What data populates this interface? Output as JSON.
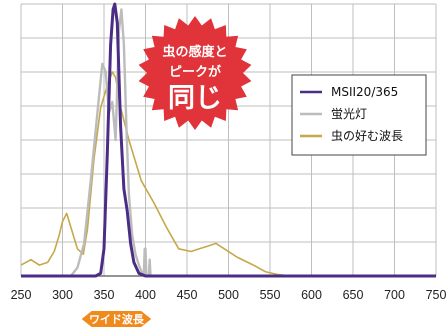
{
  "chart_data": {
    "type": "line",
    "xlim": [
      250,
      750
    ],
    "ylim": [
      0,
      1
    ],
    "grid": true,
    "legend_position": "top-right",
    "x_ticks": [
      "250",
      "300",
      "350",
      "400",
      "450",
      "500",
      "550",
      "600",
      "650",
      "700",
      "750"
    ],
    "series": [
      {
        "name": "MSII20/365",
        "color": "#4b2d86",
        "points": [
          [
            250,
            0
          ],
          [
            340,
            0
          ],
          [
            346,
            0.01
          ],
          [
            350,
            0.1
          ],
          [
            354,
            0.45
          ],
          [
            358,
            0.85
          ],
          [
            361,
            0.98
          ],
          [
            363,
            1.0
          ],
          [
            366,
            0.93
          ],
          [
            370,
            0.55
          ],
          [
            374,
            0.32
          ],
          [
            378,
            0.24
          ],
          [
            382,
            0.12
          ],
          [
            386,
            0.05
          ],
          [
            392,
            0.01
          ],
          [
            400,
            0
          ],
          [
            750,
            0
          ]
        ]
      },
      {
        "name": "蛍光灯",
        "color": "#bcbcbc",
        "points": [
          [
            250,
            0
          ],
          [
            300,
            0
          ],
          [
            310,
            0
          ],
          [
            318,
            0.03
          ],
          [
            326,
            0.12
          ],
          [
            334,
            0.35
          ],
          [
            342,
            0.6
          ],
          [
            348,
            0.78
          ],
          [
            352,
            0.75
          ],
          [
            356,
            0.6
          ],
          [
            360,
            0.64
          ],
          [
            364,
            0.5
          ],
          [
            368,
            0.9
          ],
          [
            371,
            0.98
          ],
          [
            374,
            0.85
          ],
          [
            377,
            0.55
          ],
          [
            380,
            0.3
          ],
          [
            384,
            0.15
          ],
          [
            388,
            0.08
          ],
          [
            392,
            0.04
          ],
          [
            396,
            0.01
          ],
          [
            398,
            0
          ],
          [
            399,
            0.1
          ],
          [
            400,
            0.1
          ],
          [
            401,
            0
          ],
          [
            404,
            0
          ],
          [
            405,
            0.06
          ],
          [
            406,
            0
          ],
          [
            750,
            0
          ]
        ]
      },
      {
        "name": "虫の好む波長",
        "color": "#c6a84a",
        "points": [
          [
            250,
            0.04
          ],
          [
            262,
            0.06
          ],
          [
            272,
            0.04
          ],
          [
            282,
            0.05
          ],
          [
            290,
            0.09
          ],
          [
            296,
            0.15
          ],
          [
            300,
            0.2
          ],
          [
            305,
            0.23
          ],
          [
            310,
            0.18
          ],
          [
            318,
            0.1
          ],
          [
            325,
            0.08
          ],
          [
            330,
            0.17
          ],
          [
            338,
            0.43
          ],
          [
            346,
            0.62
          ],
          [
            354,
            0.7
          ],
          [
            360,
            0.75
          ],
          [
            364,
            0.73
          ],
          [
            370,
            0.62
          ],
          [
            380,
            0.5
          ],
          [
            395,
            0.35
          ],
          [
            410,
            0.27
          ],
          [
            425,
            0.18
          ],
          [
            440,
            0.1
          ],
          [
            455,
            0.09
          ],
          [
            465,
            0.1
          ],
          [
            475,
            0.11
          ],
          [
            485,
            0.12
          ],
          [
            495,
            0.1
          ],
          [
            510,
            0.07
          ],
          [
            530,
            0.04
          ],
          [
            545,
            0.015
          ],
          [
            560,
            0.005
          ],
          [
            575,
            0
          ],
          [
            750,
            0
          ]
        ]
      }
    ]
  },
  "callout": {
    "line1": "虫の感度と",
    "line2": "ピークが",
    "line3": "同じ",
    "color": "#e0333a"
  },
  "band": {
    "label": "ワイド波長",
    "color": "#f08a1c",
    "range": [
      340,
      390
    ]
  }
}
